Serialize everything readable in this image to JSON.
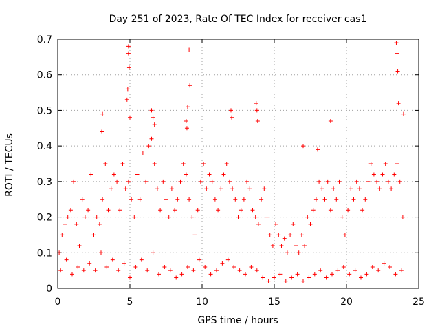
{
  "chart_data": {
    "type": "scatter",
    "title": "Day 251 of 2023, Rate Of TEC Index for receiver cas1",
    "xlabel": "GPS time / hours",
    "ylabel": "ROTI / TECUs",
    "xlim": [
      0,
      25
    ],
    "ylim": [
      0,
      0.7
    ],
    "xticks": [
      "0",
      "5",
      "10",
      "15",
      "20",
      "25"
    ],
    "yticks": [
      "0",
      "0.1",
      "0.2",
      "0.3",
      "0.4",
      "0.5",
      "0.6",
      "0.7"
    ],
    "grid": true,
    "marker": "+",
    "color": "#ff0000",
    "series": [
      {
        "x": [
          0.1,
          0.3,
          0.5,
          0.7,
          0.9,
          1.1,
          1.3,
          1.5,
          1.7,
          1.9,
          2.1,
          2.3,
          2.5,
          2.7,
          2.9,
          3.1,
          3.3,
          3.5,
          3.7,
          3.9,
          4.1,
          4.3,
          4.5,
          4.7,
          4.9,
          5.1,
          5.3,
          5.5,
          5.7,
          5.9,
          6.1,
          6.3,
          6.5,
          6.7,
          6.9,
          7.1,
          7.3,
          7.5,
          7.7,
          7.9,
          8.1,
          8.3,
          8.5,
          8.7,
          8.9,
          9.1,
          9.3,
          9.5,
          9.7,
          9.9,
          10.1,
          10.3,
          10.5,
          10.7,
          10.9,
          11.1,
          11.3,
          11.5,
          11.7,
          11.9,
          12.1,
          12.3,
          12.5,
          12.7,
          12.9,
          13.1,
          13.3,
          13.5,
          13.7,
          13.9,
          14.1,
          14.3,
          14.5,
          14.7,
          14.9,
          15.1,
          15.3,
          15.5,
          15.7,
          15.9,
          16.1,
          16.3,
          16.5,
          16.7,
          16.9,
          17.1,
          17.3,
          17.5,
          17.7,
          17.9,
          18.1,
          18.3,
          18.5,
          18.7,
          18.9,
          19.1,
          19.3,
          19.5,
          19.7,
          19.9,
          20.1,
          20.3,
          20.5,
          20.7,
          20.9,
          21.1,
          21.3,
          21.5,
          21.7,
          21.9,
          22.1,
          22.3,
          22.5,
          22.7,
          22.9,
          23.1,
          23.3,
          23.5,
          23.7,
          23.9,
          0.2,
          0.6,
          1.0,
          1.4,
          1.8,
          2.2,
          2.6,
          3.0,
          3.4,
          3.8,
          4.2,
          4.6,
          5.0,
          5.4,
          5.8,
          6.2,
          6.6,
          7.0,
          7.4,
          7.8,
          8.2,
          8.6,
          9.0,
          9.4,
          9.8,
          10.2,
          10.6,
          11.0,
          11.4,
          11.8,
          12.2,
          12.6,
          13.0,
          13.4,
          13.8,
          14.2,
          14.6,
          15.0,
          15.4,
          15.8,
          16.2,
          16.6,
          17.0,
          17.4,
          17.8,
          18.2,
          18.6,
          19.0,
          19.4,
          19.8,
          20.2,
          20.6,
          21.0,
          21.4,
          21.8,
          22.2,
          22.6,
          23.0,
          23.4,
          23.8,
          4.9,
          4.9,
          4.95,
          4.85,
          4.8,
          5.0,
          9.0,
          9.1,
          9.15,
          12.0,
          12.05,
          13.75,
          13.8,
          13.85,
          23.45,
          23.5,
          23.55,
          23.6,
          23.95,
          3.1,
          3.05,
          6.5,
          6.6,
          6.7,
          8.9,
          8.95,
          18.9,
          17.0,
          18.0
        ],
        "y": [
          0.1,
          0.15,
          0.18,
          0.2,
          0.22,
          0.3,
          0.18,
          0.12,
          0.25,
          0.2,
          0.22,
          0.32,
          0.15,
          0.2,
          0.18,
          0.25,
          0.35,
          0.22,
          0.28,
          0.32,
          0.3,
          0.22,
          0.35,
          0.28,
          0.3,
          0.25,
          0.2,
          0.32,
          0.25,
          0.38,
          0.3,
          0.4,
          0.42,
          0.35,
          0.28,
          0.22,
          0.3,
          0.25,
          0.2,
          0.28,
          0.22,
          0.25,
          0.3,
          0.35,
          0.32,
          0.25,
          0.2,
          0.15,
          0.22,
          0.3,
          0.35,
          0.28,
          0.32,
          0.3,
          0.25,
          0.22,
          0.28,
          0.32,
          0.35,
          0.3,
          0.28,
          0.25,
          0.2,
          0.22,
          0.25,
          0.3,
          0.28,
          0.22,
          0.2,
          0.18,
          0.25,
          0.28,
          0.2,
          0.15,
          0.12,
          0.18,
          0.15,
          0.12,
          0.14,
          0.1,
          0.15,
          0.18,
          0.12,
          0.1,
          0.15,
          0.12,
          0.2,
          0.18,
          0.22,
          0.25,
          0.3,
          0.28,
          0.25,
          0.3,
          0.22,
          0.28,
          0.25,
          0.3,
          0.2,
          0.15,
          0.22,
          0.28,
          0.25,
          0.3,
          0.28,
          0.22,
          0.25,
          0.3,
          0.35,
          0.32,
          0.3,
          0.28,
          0.32,
          0.35,
          0.3,
          0.28,
          0.32,
          0.35,
          0.3,
          0.2,
          0.05,
          0.08,
          0.04,
          0.06,
          0.05,
          0.07,
          0.05,
          0.1,
          0.06,
          0.08,
          0.05,
          0.07,
          0.03,
          0.06,
          0.08,
          0.05,
          0.1,
          0.04,
          0.06,
          0.05,
          0.03,
          0.04,
          0.06,
          0.05,
          0.08,
          0.06,
          0.04,
          0.05,
          0.07,
          0.08,
          0.06,
          0.05,
          0.04,
          0.06,
          0.05,
          0.03,
          0.02,
          0.03,
          0.04,
          0.02,
          0.03,
          0.04,
          0.02,
          0.03,
          0.04,
          0.05,
          0.03,
          0.04,
          0.05,
          0.06,
          0.04,
          0.05,
          0.03,
          0.04,
          0.06,
          0.05,
          0.07,
          0.06,
          0.04,
          0.05,
          0.68,
          0.66,
          0.62,
          0.56,
          0.53,
          0.48,
          0.51,
          0.67,
          0.57,
          0.5,
          0.48,
          0.52,
          0.5,
          0.47,
          0.69,
          0.66,
          0.61,
          0.52,
          0.49,
          0.49,
          0.44,
          0.5,
          0.48,
          0.46,
          0.47,
          0.45,
          0.47,
          0.4,
          0.39
        ]
      }
    ]
  }
}
